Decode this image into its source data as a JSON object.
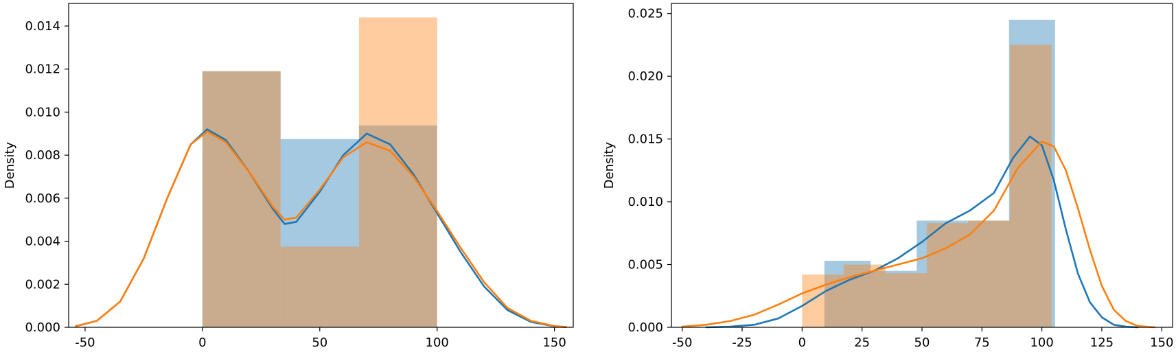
{
  "chart_data": [
    {
      "type": "histogram+kde",
      "title": "",
      "xlabel": "",
      "ylabel": "Density",
      "xlim": [
        -57,
        158
      ],
      "ylim": [
        0,
        0.01505
      ],
      "xticks": [
        -50,
        0,
        50,
        100,
        150
      ],
      "yticks": [
        0.0,
        0.002,
        0.004,
        0.006,
        0.008,
        0.01,
        0.012,
        0.014
      ],
      "ytick_labels": [
        "0.000",
        "0.002",
        "0.004",
        "0.006",
        "0.008",
        "0.010",
        "0.012",
        "0.014"
      ],
      "grid": false,
      "legend": "none",
      "series": [
        {
          "color": "#1f77b4",
          "bins": [
            {
              "x0": 0,
              "x1": 33.3,
              "density": 0.0119
            },
            {
              "x0": 33.3,
              "x1": 66.7,
              "density": 0.00875
            },
            {
              "x0": 66.7,
              "x1": 100,
              "density": 0.00938
            }
          ],
          "kde": [
            [
              -54,
              5e-05
            ],
            [
              -45,
              0.0003
            ],
            [
              -35,
              0.0012
            ],
            [
              -25,
              0.0032
            ],
            [
              -15,
              0.006
            ],
            [
              -5,
              0.0085
            ],
            [
              2,
              0.0092
            ],
            [
              10,
              0.0087
            ],
            [
              20,
              0.0072
            ],
            [
              30,
              0.0055
            ],
            [
              35,
              0.0048
            ],
            [
              40,
              0.0049
            ],
            [
              50,
              0.0063
            ],
            [
              60,
              0.008
            ],
            [
              70,
              0.009
            ],
            [
              80,
              0.0085
            ],
            [
              90,
              0.0071
            ],
            [
              100,
              0.0053
            ],
            [
              110,
              0.0035
            ],
            [
              120,
              0.0019
            ],
            [
              130,
              0.0008
            ],
            [
              140,
              0.00025
            ],
            [
              150,
              5e-05
            ],
            [
              155,
              1e-05
            ]
          ]
        },
        {
          "color": "#ff7f0e",
          "bins": [
            {
              "x0": 0,
              "x1": 33.3,
              "density": 0.0119
            },
            {
              "x0": 33.3,
              "x1": 66.7,
              "density": 0.00375
            },
            {
              "x0": 66.7,
              "x1": 100,
              "density": 0.0144
            }
          ],
          "kde": [
            [
              -54,
              5e-05
            ],
            [
              -45,
              0.0003
            ],
            [
              -35,
              0.0012
            ],
            [
              -25,
              0.0032
            ],
            [
              -15,
              0.006
            ],
            [
              -5,
              0.0085
            ],
            [
              2,
              0.0091
            ],
            [
              10,
              0.0086
            ],
            [
              20,
              0.0072
            ],
            [
              30,
              0.0056
            ],
            [
              35,
              0.005
            ],
            [
              40,
              0.0051
            ],
            [
              50,
              0.0064
            ],
            [
              60,
              0.0079
            ],
            [
              70,
              0.0086
            ],
            [
              80,
              0.0082
            ],
            [
              90,
              0.007
            ],
            [
              100,
              0.0054
            ],
            [
              110,
              0.0037
            ],
            [
              120,
              0.0021
            ],
            [
              130,
              0.0009
            ],
            [
              140,
              0.0003
            ],
            [
              150,
              6e-05
            ],
            [
              155,
              1e-05
            ]
          ]
        }
      ]
    },
    {
      "type": "histogram+kde",
      "title": "",
      "xlabel": "",
      "ylabel": "Density",
      "xlim": [
        -54.5,
        154.5
      ],
      "ylim": [
        0,
        0.0258
      ],
      "xticks": [
        -50,
        -25,
        0,
        25,
        50,
        75,
        100,
        125,
        150
      ],
      "yticks": [
        0.0,
        0.005,
        0.01,
        0.015,
        0.02,
        0.025
      ],
      "ytick_labels": [
        "0.000",
        "0.005",
        "0.010",
        "0.015",
        "0.020",
        "0.025"
      ],
      "grid": false,
      "legend": "none",
      "series": [
        {
          "color": "#1f77b4",
          "bins": [
            {
              "x0": 9.3,
              "x1": 28.6,
              "density": 0.0053
            },
            {
              "x0": 28.6,
              "x1": 47.8,
              "density": 0.0045
            },
            {
              "x0": 47.8,
              "x1": 67.0,
              "density": 0.0085
            },
            {
              "x0": 67.0,
              "x1": 86.3,
              "density": 0.0085
            },
            {
              "x0": 86.3,
              "x1": 105.5,
              "density": 0.0245
            }
          ],
          "kde": [
            [
              -40,
              0.0
            ],
            [
              -30,
              5e-05
            ],
            [
              -20,
              0.0002
            ],
            [
              -10,
              0.0007
            ],
            [
              0,
              0.0017
            ],
            [
              10,
              0.0029
            ],
            [
              20,
              0.0038
            ],
            [
              30,
              0.0045
            ],
            [
              40,
              0.0055
            ],
            [
              50,
              0.0068
            ],
            [
              60,
              0.0083
            ],
            [
              70,
              0.0093
            ],
            [
              80,
              0.0107
            ],
            [
              88,
              0.0135
            ],
            [
              95,
              0.0152
            ],
            [
              100,
              0.0145
            ],
            [
              105,
              0.0117
            ],
            [
              110,
              0.0078
            ],
            [
              115,
              0.0043
            ],
            [
              120,
              0.002
            ],
            [
              125,
              0.0008
            ],
            [
              130,
              0.0002
            ],
            [
              135,
              5e-05
            ],
            [
              140,
              0.0
            ]
          ]
        },
        {
          "color": "#ff7f0e",
          "bins": [
            {
              "x0": 0,
              "x1": 17.3,
              "density": 0.0042
            },
            {
              "x0": 17.3,
              "x1": 34.7,
              "density": 0.005
            },
            {
              "x0": 34.7,
              "x1": 52.0,
              "density": 0.0043
            },
            {
              "x0": 52.0,
              "x1": 69.3,
              "density": 0.0083
            },
            {
              "x0": 69.3,
              "x1": 86.7,
              "density": 0.0085
            },
            {
              "x0": 86.7,
              "x1": 104.0,
              "density": 0.0225
            }
          ],
          "kde": [
            [
              -50,
              5e-05
            ],
            [
              -40,
              0.0002
            ],
            [
              -30,
              0.0005
            ],
            [
              -20,
              0.001
            ],
            [
              -10,
              0.0018
            ],
            [
              0,
              0.0027
            ],
            [
              10,
              0.0034
            ],
            [
              20,
              0.004
            ],
            [
              30,
              0.0045
            ],
            [
              40,
              0.005
            ],
            [
              50,
              0.0055
            ],
            [
              60,
              0.0063
            ],
            [
              70,
              0.0074
            ],
            [
              80,
              0.0093
            ],
            [
              90,
              0.0127
            ],
            [
              100,
              0.0148
            ],
            [
              105,
              0.0144
            ],
            [
              110,
              0.0125
            ],
            [
              115,
              0.0095
            ],
            [
              120,
              0.0062
            ],
            [
              125,
              0.0033
            ],
            [
              130,
              0.0014
            ],
            [
              135,
              0.0005
            ],
            [
              140,
              0.0001
            ],
            [
              147,
              0.0
            ]
          ]
        }
      ]
    }
  ]
}
